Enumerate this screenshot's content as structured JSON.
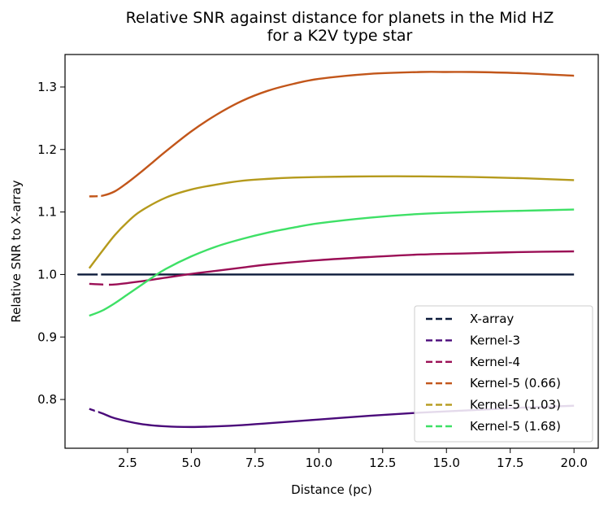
{
  "chart_data": {
    "type": "line",
    "title": "Relative SNR against distance for planets in the Mid HZ\nfor a K2V type star",
    "xlabel": "Distance (pc)",
    "ylabel": "Relative SNR to X-array",
    "xlim": [
      0.05,
      20.95
    ],
    "ylim": [
      0.722,
      1.352
    ],
    "xticks": [
      2.5,
      5.0,
      7.5,
      10.0,
      12.5,
      15.0,
      17.5,
      20.0
    ],
    "xtick_labels": [
      "2.5",
      "5.0",
      "7.5",
      "10.0",
      "12.5",
      "15.0",
      "17.5",
      "20.0"
    ],
    "yticks": [
      0.8,
      0.9,
      1.0,
      1.1,
      1.2,
      1.3
    ],
    "ytick_labels": [
      "0.8",
      "0.9",
      "1.0",
      "1.1",
      "1.2",
      "1.3"
    ],
    "grid": false,
    "legend_position": "lower-right",
    "series": [
      {
        "name": "X-array",
        "color": "#0b1a3a",
        "x": [
          1.0,
          1.6,
          2.0,
          20.0
        ],
        "y": [
          1.0,
          1.0,
          1.0,
          1.0
        ],
        "dashed_until": 1.6
      },
      {
        "name": "Kernel-3",
        "color": "#4a0a7a",
        "x": [
          1.0,
          1.5,
          2.0,
          3.0,
          4.0,
          5.0,
          6.0,
          7.0,
          8.0,
          10.0,
          12.0,
          14.0,
          16.0,
          18.0,
          20.0
        ],
        "y": [
          0.785,
          0.778,
          0.77,
          0.761,
          0.757,
          0.756,
          0.757,
          0.759,
          0.762,
          0.768,
          0.774,
          0.779,
          0.783,
          0.787,
          0.79
        ],
        "dashed_until": 1.4
      },
      {
        "name": "Kernel-4",
        "color": "#9b0f56",
        "x": [
          1.0,
          1.5,
          2.0,
          3.0,
          4.0,
          5.0,
          6.0,
          7.0,
          8.0,
          10.0,
          12.0,
          14.0,
          16.0,
          18.0,
          20.0
        ],
        "y": [
          0.985,
          0.984,
          0.984,
          0.989,
          0.995,
          1.001,
          1.006,
          1.011,
          1.016,
          1.023,
          1.028,
          1.032,
          1.034,
          1.036,
          1.037
        ],
        "dashed_until": 2.0
      },
      {
        "name": "Kernel-5 (0.66)",
        "color": "#c2561a",
        "x": [
          1.0,
          1.5,
          2.0,
          2.5,
          3.0,
          3.5,
          4.0,
          5.0,
          6.0,
          7.0,
          8.0,
          9.0,
          10.0,
          12.0,
          14.0,
          15.0,
          16.0,
          18.0,
          20.0
        ],
        "y": [
          1.125,
          1.126,
          1.133,
          1.147,
          1.163,
          1.18,
          1.197,
          1.229,
          1.256,
          1.278,
          1.294,
          1.305,
          1.313,
          1.321,
          1.324,
          1.324,
          1.324,
          1.322,
          1.318
        ],
        "dashed_until": 1.6
      },
      {
        "name": "Kernel-5 (1.03)",
        "color": "#b59a1c",
        "x": [
          1.0,
          1.5,
          2.0,
          2.5,
          3.0,
          4.0,
          5.0,
          6.0,
          7.0,
          8.0,
          9.0,
          10.0,
          12.0,
          14.0,
          16.0,
          18.0,
          20.0
        ],
        "y": [
          1.01,
          1.037,
          1.063,
          1.084,
          1.101,
          1.123,
          1.136,
          1.144,
          1.15,
          1.153,
          1.155,
          1.156,
          1.157,
          1.157,
          1.156,
          1.154,
          1.151
        ]
      },
      {
        "name": "Kernel-5 (1.68)",
        "color": "#3ee066",
        "x": [
          1.0,
          1.5,
          2.0,
          2.5,
          3.0,
          3.5,
          4.0,
          5.0,
          6.0,
          7.0,
          8.0,
          9.0,
          10.0,
          12.0,
          14.0,
          16.0,
          18.0,
          20.0
        ],
        "y": [
          0.934,
          0.942,
          0.954,
          0.968,
          0.982,
          0.996,
          1.009,
          1.029,
          1.045,
          1.057,
          1.067,
          1.075,
          1.082,
          1.091,
          1.097,
          1.1,
          1.102,
          1.104
        ]
      }
    ]
  }
}
